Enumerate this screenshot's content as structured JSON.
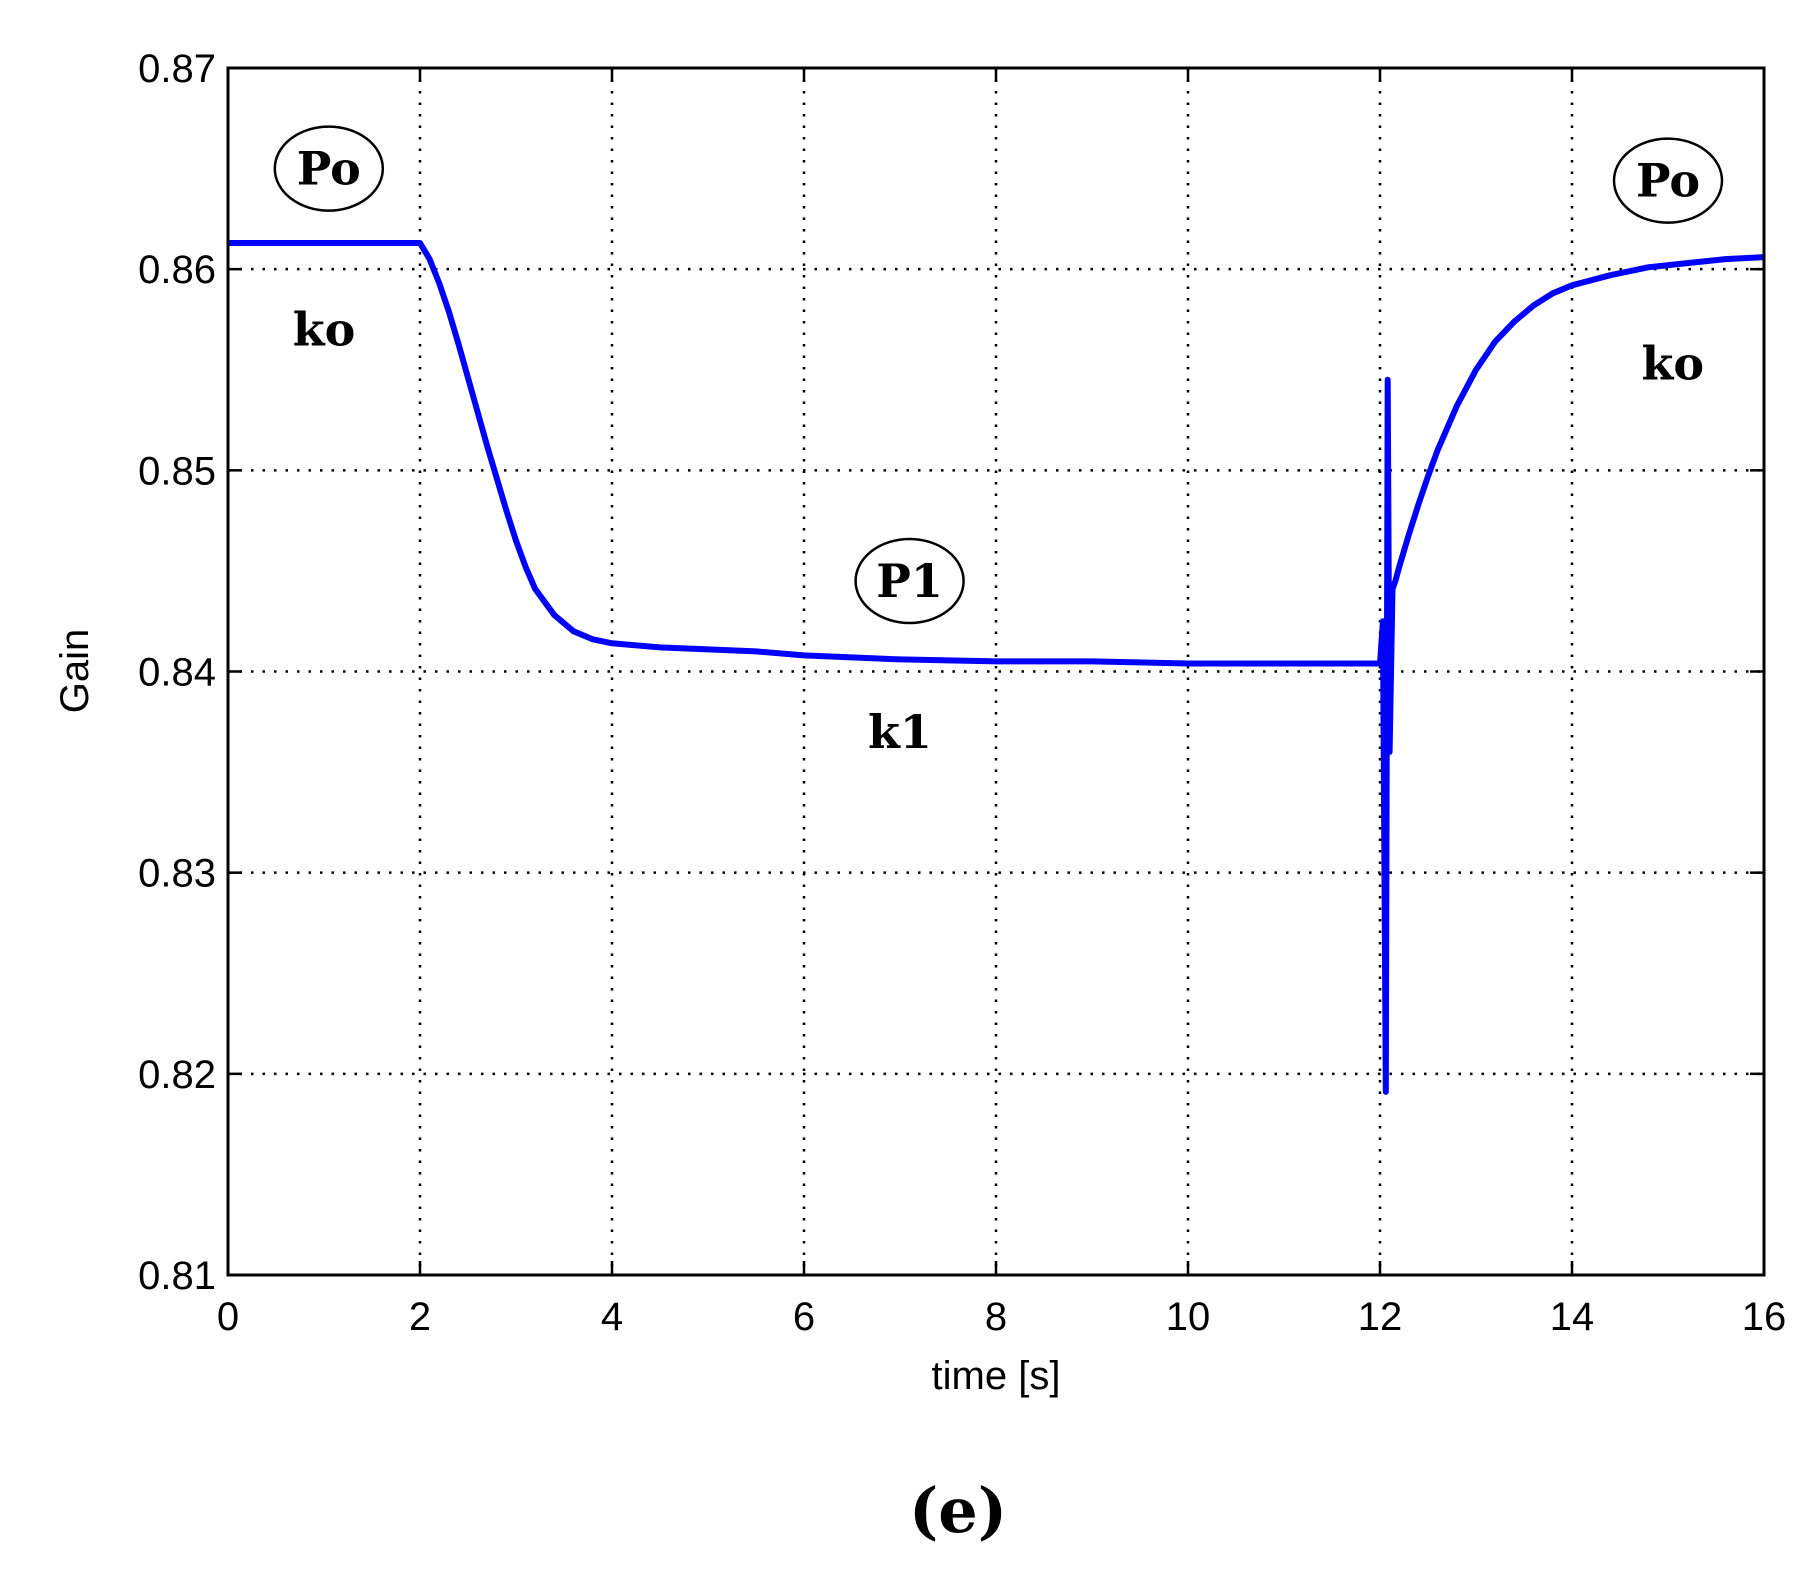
{
  "chart_data": {
    "type": "line",
    "title": "",
    "xlabel": "time [s]",
    "ylabel": "Gain",
    "xlim": [
      0,
      16
    ],
    "ylim": [
      0.81,
      0.87
    ],
    "xticks": [
      0,
      2,
      4,
      6,
      8,
      10,
      12,
      14,
      16
    ],
    "yticks": [
      0.81,
      0.82,
      0.83,
      0.84,
      0.85,
      0.86,
      0.87
    ],
    "xtick_labels": [
      "0",
      "2",
      "4",
      "6",
      "8",
      "10",
      "12",
      "14",
      "16"
    ],
    "ytick_labels": [
      "0.81",
      "0.82",
      "0.83",
      "0.84",
      "0.85",
      "0.86",
      "0.87"
    ],
    "grid": true,
    "line_color": "#0000ff",
    "series": [
      {
        "x": [
          0,
          2.0,
          2.1,
          2.2,
          2.3,
          2.4,
          2.5,
          2.6,
          2.7,
          2.8,
          2.9,
          3.0,
          3.1,
          3.2,
          3.4,
          3.6,
          3.8,
          4.0,
          4.5,
          5.0,
          5.5,
          6.0,
          7.0,
          8.0,
          9.0,
          10.0,
          11.0,
          12.0,
          12.03,
          12.06,
          12.08,
          12.1,
          12.13,
          12.16,
          12.2,
          12.3,
          12.4,
          12.5,
          12.6,
          12.8,
          13.0,
          13.2,
          13.4,
          13.6,
          13.8,
          14.0,
          14.4,
          14.8,
          15.2,
          15.6,
          16.0
        ],
        "y": [
          0.8613,
          0.8613,
          0.8605,
          0.8593,
          0.8579,
          0.8563,
          0.8546,
          0.8529,
          0.8512,
          0.8496,
          0.848,
          0.8465,
          0.8452,
          0.8441,
          0.8428,
          0.842,
          0.8416,
          0.8414,
          0.8412,
          0.8411,
          0.841,
          0.8408,
          0.8406,
          0.8405,
          0.8405,
          0.8404,
          0.8404,
          0.8404,
          0.8425,
          0.8191,
          0.8545,
          0.836,
          0.8441,
          0.8445,
          0.8452,
          0.8468,
          0.8483,
          0.8497,
          0.851,
          0.8532,
          0.855,
          0.8564,
          0.8574,
          0.8582,
          0.8588,
          0.8592,
          0.8597,
          0.8601,
          0.8603,
          0.8605,
          0.8606
        ]
      }
    ],
    "annotations": [
      {
        "text": "Po",
        "x": 1.05,
        "y": 0.865,
        "circled": true
      },
      {
        "text": "ko",
        "x": 1.0,
        "y": 0.857,
        "circled": false
      },
      {
        "text": "P1",
        "x": 7.1,
        "y": 0.8445,
        "circled": true
      },
      {
        "text": "k1",
        "x": 7.0,
        "y": 0.837,
        "circled": false
      },
      {
        "text": "Po",
        "x": 15.0,
        "y": 0.8644,
        "circled": true
      },
      {
        "text": "ko",
        "x": 15.05,
        "y": 0.8553,
        "circled": false
      }
    ],
    "caption": "(e)"
  }
}
